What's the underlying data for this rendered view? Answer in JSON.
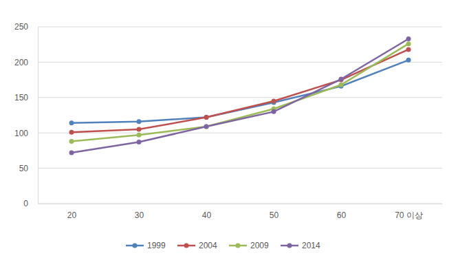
{
  "chart_data": {
    "type": "line",
    "categories": [
      "20",
      "30",
      "40",
      "50",
      "60",
      "70 이상"
    ],
    "series": [
      {
        "name": "1999",
        "color": "#4f81bd",
        "values": [
          114,
          116,
          122,
          143,
          166,
          203
        ]
      },
      {
        "name": "2004",
        "color": "#c0504d",
        "values": [
          101,
          105,
          122,
          145,
          175,
          218
        ]
      },
      {
        "name": "2009",
        "color": "#9bbb59",
        "values": [
          88,
          97,
          109,
          134,
          168,
          226
        ]
      },
      {
        "name": "2014",
        "color": "#8064a2",
        "values": [
          72,
          87,
          109,
          130,
          176,
          233
        ]
      }
    ],
    "ylim": [
      0,
      250
    ],
    "yticks": [
      0,
      50,
      100,
      150,
      200,
      250
    ],
    "grid": true,
    "legend": "bottom",
    "marker": "circle"
  }
}
